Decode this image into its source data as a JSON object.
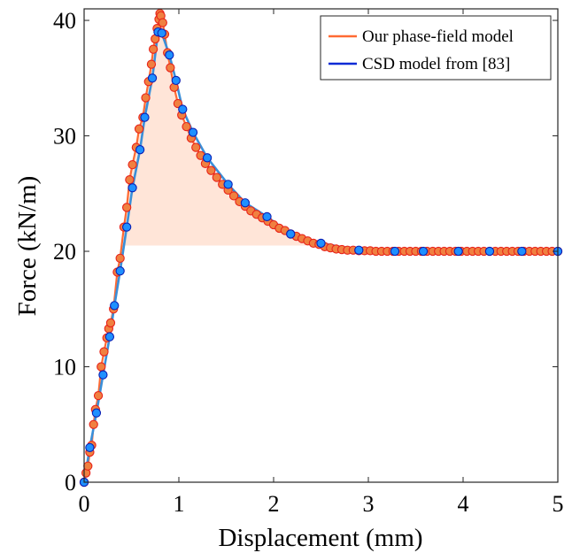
{
  "chart_data": {
    "type": "line",
    "xlabel": "Displacement (mm)",
    "ylabel": "Force (kN/m)",
    "xlim": [
      0,
      5
    ],
    "ylim": [
      0,
      41
    ],
    "x_ticks": [
      "0",
      "1",
      "2",
      "3",
      "4",
      "5"
    ],
    "y_ticks": [
      "0",
      "10",
      "20",
      "30",
      "40"
    ],
    "grid": false,
    "legend_position": "top-right",
    "legend": [
      "Our phase-field model",
      "CSD model from [83]"
    ],
    "colors": {
      "phase_field_marker_fill": "#f08040",
      "phase_field_marker_edge": "#e8231a",
      "phase_field_line": "#ff6a33",
      "fill_band": "#ffdccb",
      "csd_line": "#3a8fd9",
      "csd_marker_fill": "#1e90ff",
      "csd_marker_edge": "#0a1eb4",
      "legend_csd_line": "#0b2bd6"
    },
    "series": [
      {
        "name": "Our phase-field model",
        "x": [
          0.0,
          0.02,
          0.04,
          0.06,
          0.08,
          0.1,
          0.12,
          0.15,
          0.18,
          0.21,
          0.24,
          0.26,
          0.28,
          0.31,
          0.35,
          0.38,
          0.42,
          0.45,
          0.48,
          0.51,
          0.55,
          0.58,
          0.62,
          0.65,
          0.68,
          0.71,
          0.73,
          0.75,
          0.77,
          0.79,
          0.8,
          0.81,
          0.83,
          0.85,
          0.88,
          0.91,
          0.95,
          0.99,
          1.03,
          1.08,
          1.13,
          1.18,
          1.23,
          1.28,
          1.34,
          1.4,
          1.46,
          1.52,
          1.58,
          1.64,
          1.7,
          1.76,
          1.82,
          1.88,
          1.94,
          2.0,
          2.06,
          2.12,
          2.18,
          2.24,
          2.3,
          2.36,
          2.42,
          2.48,
          2.54,
          2.6,
          2.66,
          2.72,
          2.78,
          2.84,
          2.9,
          2.96,
          3.02,
          3.08,
          3.14,
          3.2,
          3.26,
          3.32,
          3.38,
          3.44,
          3.5,
          3.56,
          3.62,
          3.68,
          3.74,
          3.8,
          3.86,
          3.92,
          3.98,
          4.04,
          4.1,
          4.16,
          4.22,
          4.28,
          4.34,
          4.4,
          4.46,
          4.52,
          4.58,
          4.64,
          4.7,
          4.76,
          4.82,
          4.88,
          4.94,
          5.0
        ],
        "y": [
          0.0,
          0.8,
          1.4,
          2.6,
          3.2,
          5.0,
          6.3,
          7.5,
          10.0,
          11.3,
          12.5,
          13.3,
          13.8,
          15.0,
          18.2,
          19.4,
          22.1,
          23.8,
          26.2,
          27.5,
          29.0,
          30.6,
          31.6,
          33.3,
          34.7,
          36.2,
          37.5,
          38.4,
          39.3,
          40.1,
          40.6,
          40.4,
          39.8,
          38.8,
          37.2,
          35.9,
          34.2,
          32.8,
          31.8,
          30.8,
          29.8,
          29.0,
          28.3,
          27.6,
          27.0,
          26.4,
          25.8,
          25.3,
          24.8,
          24.3,
          23.9,
          23.5,
          23.2,
          22.9,
          22.6,
          22.3,
          22.0,
          21.8,
          21.5,
          21.3,
          21.1,
          20.9,
          20.7,
          20.6,
          20.4,
          20.3,
          20.2,
          20.15,
          20.1,
          20.1,
          20.05,
          20.05,
          20.05,
          20.0,
          20.0,
          20.0,
          20.0,
          20.0,
          20.0,
          20.0,
          20.0,
          20.0,
          20.0,
          20.0,
          20.0,
          20.0,
          20.0,
          20.0,
          20.0,
          20.0,
          20.0,
          20.0,
          20.0,
          20.0,
          20.0,
          20.0,
          20.0,
          20.0,
          20.0,
          20.0,
          20.0,
          20.0,
          20.0,
          20.0,
          20.0,
          20.0
        ]
      },
      {
        "name": "CSD model from [83]",
        "x": [
          0.0,
          0.06,
          0.13,
          0.2,
          0.27,
          0.32,
          0.38,
          0.45,
          0.51,
          0.59,
          0.64,
          0.72,
          0.78,
          0.82,
          0.9,
          0.97,
          1.04,
          1.15,
          1.3,
          1.52,
          1.7,
          1.93,
          2.18,
          2.5,
          2.9,
          3.28,
          3.58,
          3.95,
          4.28,
          4.62,
          5.0
        ],
        "y": [
          0.0,
          3.0,
          6.0,
          9.3,
          12.6,
          15.3,
          18.3,
          22.1,
          25.5,
          28.8,
          31.6,
          35.0,
          39.0,
          38.9,
          37.0,
          34.8,
          32.3,
          30.3,
          28.1,
          25.8,
          24.2,
          23.0,
          21.5,
          20.7,
          20.1,
          20.0,
          20.0,
          20.0,
          20.0,
          20.0,
          20.0
        ]
      }
    ]
  }
}
